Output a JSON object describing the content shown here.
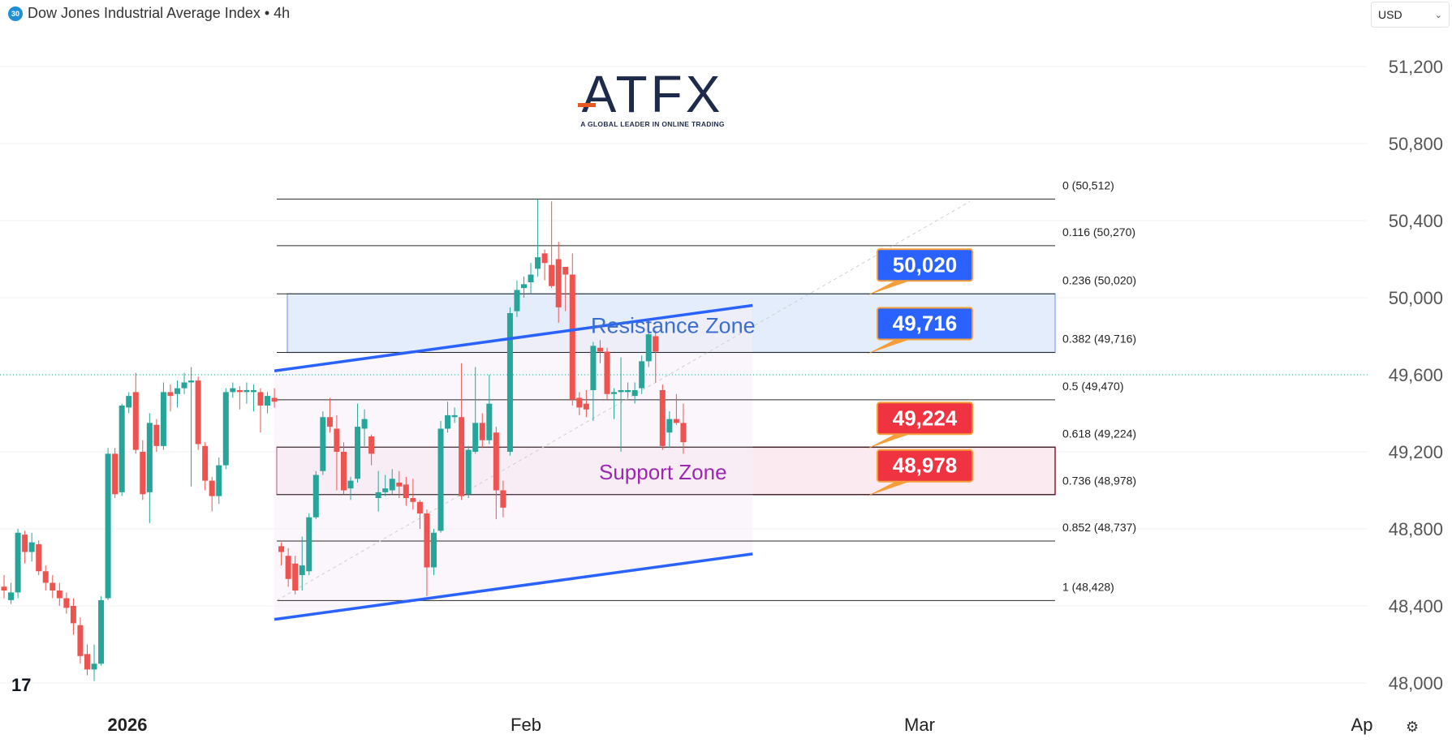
{
  "header": {
    "badge": "30",
    "title": "Dow Jones Industrial Average Index • 4h"
  },
  "currency_selector": {
    "value": "USD"
  },
  "logo": {
    "word": "ATFX",
    "tagline": "A GLOBAL LEADER IN ONLINE TRADING"
  },
  "tradingview_mark": "17",
  "settings_icon": "gear-icon",
  "colors": {
    "up": "#26a69a",
    "down": "#ef5350",
    "trend": "#2962ff",
    "resistance_fill": "#dbe7fa",
    "support_fill": "#fbe9ef"
  },
  "chart_data": {
    "type": "candlestick",
    "title": "Dow Jones Industrial Average Index • 4h",
    "y_ticks": [
      48000,
      48400,
      48800,
      49200,
      49600,
      50000,
      50400,
      50800,
      51200
    ],
    "ylim": [
      47900,
      51440
    ],
    "x_ticks": [
      "2026",
      "Feb",
      "Mar",
      "Ap"
    ],
    "grid": true,
    "fibonacci": [
      {
        "label": "0 (50,512)",
        "level": 0,
        "value": 50512
      },
      {
        "label": "0.116 (50,270)",
        "level": 0.116,
        "value": 50270
      },
      {
        "label": "0.236 (50,020)",
        "level": 0.236,
        "value": 50020
      },
      {
        "label": "0.382 (49,716)",
        "level": 0.382,
        "value": 49716
      },
      {
        "label": "0.5 (49,470)",
        "level": 0.5,
        "value": 49470
      },
      {
        "label": "0.618 (49,224)",
        "level": 0.618,
        "value": 49224
      },
      {
        "label": "0.736 (48,978)",
        "level": 0.736,
        "value": 48978
      },
      {
        "label": "0.852 (48,737)",
        "level": 0.852,
        "value": 48737
      },
      {
        "label": "1 (48,428)",
        "level": 1,
        "value": 48428
      }
    ],
    "zones": [
      {
        "name": "Resistance Zone",
        "low": 49716,
        "high": 50020
      },
      {
        "name": "Support Zone",
        "low": 48978,
        "high": 49224
      }
    ],
    "callouts": [
      {
        "text": "50,020",
        "value": 50020,
        "kind": "resistance"
      },
      {
        "text": "49,716",
        "value": 49716,
        "kind": "resistance"
      },
      {
        "text": "49,224",
        "value": 49224,
        "kind": "support"
      },
      {
        "text": "48,978",
        "value": 48978,
        "kind": "support"
      }
    ],
    "channel": {
      "upper": [
        {
          "index": 39,
          "value": 49620
        },
        {
          "index": 108,
          "value": 49960
        }
      ],
      "lower": [
        {
          "index": 39,
          "value": 48330
        },
        {
          "index": 108,
          "value": 48670
        }
      ]
    },
    "current_price": 49600,
    "candles": [
      [
        48500,
        48480,
        48560,
        48440
      ],
      [
        48430,
        48470,
        48520,
        48410
      ],
      [
        48470,
        48780,
        48800,
        48440
      ],
      [
        48770,
        48680,
        48790,
        48620
      ],
      [
        48680,
        48730,
        48780,
        48630
      ],
      [
        48720,
        48580,
        48740,
        48560
      ],
      [
        48580,
        48520,
        48610,
        48480
      ],
      [
        48520,
        48480,
        48560,
        48440
      ],
      [
        48480,
        48440,
        48520,
        48400
      ],
      [
        48440,
        48390,
        48470,
        48360
      ],
      [
        48400,
        48310,
        48440,
        48250
      ],
      [
        48300,
        48140,
        48340,
        48100
      ],
      [
        48150,
        48070,
        48200,
        48040
      ],
      [
        48070,
        48100,
        48200,
        48010
      ],
      [
        48100,
        48430,
        48450,
        48090
      ],
      [
        48440,
        49190,
        49220,
        48430
      ],
      [
        49190,
        48980,
        49220,
        48960
      ],
      [
        48990,
        49440,
        49450,
        48970
      ],
      [
        49430,
        49490,
        49510,
        49400
      ],
      [
        49510,
        49210,
        49610,
        49190
      ],
      [
        49200,
        48980,
        49260,
        48950
      ],
      [
        48990,
        49350,
        49400,
        48830
      ],
      [
        49340,
        49230,
        49370,
        49200
      ],
      [
        49230,
        49510,
        49560,
        49210
      ],
      [
        49510,
        49490,
        49550,
        49410
      ],
      [
        49500,
        49530,
        49570,
        49430
      ],
      [
        49530,
        49560,
        49610,
        49500
      ],
      [
        49560,
        49570,
        49640,
        49020
      ],
      [
        49570,
        49240,
        49590,
        49210
      ],
      [
        49230,
        49050,
        49250,
        49000
      ],
      [
        49050,
        48970,
        49070,
        48890
      ],
      [
        48970,
        49130,
        49170,
        48930
      ],
      [
        49130,
        49510,
        49530,
        49110
      ],
      [
        49510,
        49530,
        49560,
        49480
      ],
      [
        49520,
        49510,
        49540,
        49420
      ],
      [
        49510,
        49520,
        49560,
        49450
      ],
      [
        49510,
        49520,
        49550,
        49410
      ],
      [
        49510,
        49440,
        49530,
        49300
      ],
      [
        49440,
        49490,
        49510,
        49400
      ],
      [
        49480,
        49460,
        49530,
        49430
      ],
      [
        48710,
        48680,
        48730,
        48610
      ],
      [
        48660,
        48540,
        48700,
        48500
      ],
      [
        48620,
        48480,
        48660,
        48460
      ],
      [
        48560,
        48610,
        48760,
        48480
      ],
      [
        48580,
        48860,
        48880,
        48560
      ],
      [
        48860,
        49080,
        49100,
        48850
      ],
      [
        49100,
        49380,
        49410,
        49080
      ],
      [
        49380,
        49330,
        49480,
        49300
      ],
      [
        49320,
        49200,
        49390,
        49000
      ],
      [
        49200,
        49000,
        49250,
        48980
      ],
      [
        49010,
        49050,
        49070,
        48950
      ],
      [
        49060,
        49330,
        49450,
        49040
      ],
      [
        49320,
        49370,
        49420,
        49230
      ],
      [
        49280,
        49190,
        49290,
        49130
      ],
      [
        48960,
        48990,
        49100,
        48890
      ],
      [
        48990,
        49010,
        49080,
        48970
      ],
      [
        49000,
        49060,
        49110,
        48980
      ],
      [
        49040,
        49020,
        49100,
        48960
      ],
      [
        49030,
        48960,
        49070,
        48920
      ],
      [
        48960,
        48940,
        49060,
        48900
      ],
      [
        48940,
        48880,
        48950,
        48800
      ],
      [
        48880,
        48600,
        48900,
        48450
      ],
      [
        48600,
        48780,
        48800,
        48560
      ],
      [
        48790,
        49320,
        49360,
        48780
      ],
      [
        49320,
        49390,
        49460,
        49300
      ],
      [
        49380,
        49390,
        49430,
        49350
      ],
      [
        49380,
        48970,
        49660,
        48950
      ],
      [
        48980,
        49210,
        49230,
        48960
      ],
      [
        49200,
        49350,
        49640,
        49190
      ],
      [
        49350,
        49260,
        49400,
        49220
      ],
      [
        49260,
        49450,
        49600,
        49240
      ],
      [
        49300,
        49000,
        49330,
        48850
      ],
      [
        49000,
        48910,
        49050,
        48860
      ],
      [
        49200,
        49920,
        49950,
        49180
      ],
      [
        49930,
        50040,
        50090,
        49900
      ],
      [
        50050,
        50070,
        50110,
        50000
      ],
      [
        50080,
        50120,
        50180,
        50020
      ],
      [
        50150,
        50210,
        50510,
        50110
      ],
      [
        50230,
        50180,
        50250,
        50090
      ],
      [
        50170,
        50060,
        50500,
        50050
      ],
      [
        50200,
        49950,
        50290,
        49870
      ],
      [
        50160,
        50120,
        50160,
        49930
      ],
      [
        50120,
        49470,
        50230,
        49440
      ],
      [
        49480,
        49430,
        49510,
        49390
      ],
      [
        49450,
        49420,
        49520,
        49380
      ],
      [
        49520,
        49750,
        49770,
        49360
      ],
      [
        49740,
        49720,
        49780,
        49660
      ],
      [
        49720,
        49500,
        49740,
        49470
      ],
      [
        49500,
        49510,
        49530,
        49370
      ],
      [
        49510,
        49520,
        49690,
        49200
      ],
      [
        49510,
        49520,
        49560,
        49480
      ],
      [
        49490,
        49520,
        49560,
        49450
      ],
      [
        49530,
        49670,
        49700,
        49500
      ],
      [
        49670,
        49810,
        49860,
        49640
      ],
      [
        49800,
        49720,
        49830,
        49560
      ],
      [
        49520,
        49230,
        49550,
        49210
      ],
      [
        49300,
        49370,
        49410,
        49220
      ],
      [
        49370,
        49350,
        49500,
        49340
      ],
      [
        49350,
        49250,
        49450,
        49190
      ]
    ]
  }
}
